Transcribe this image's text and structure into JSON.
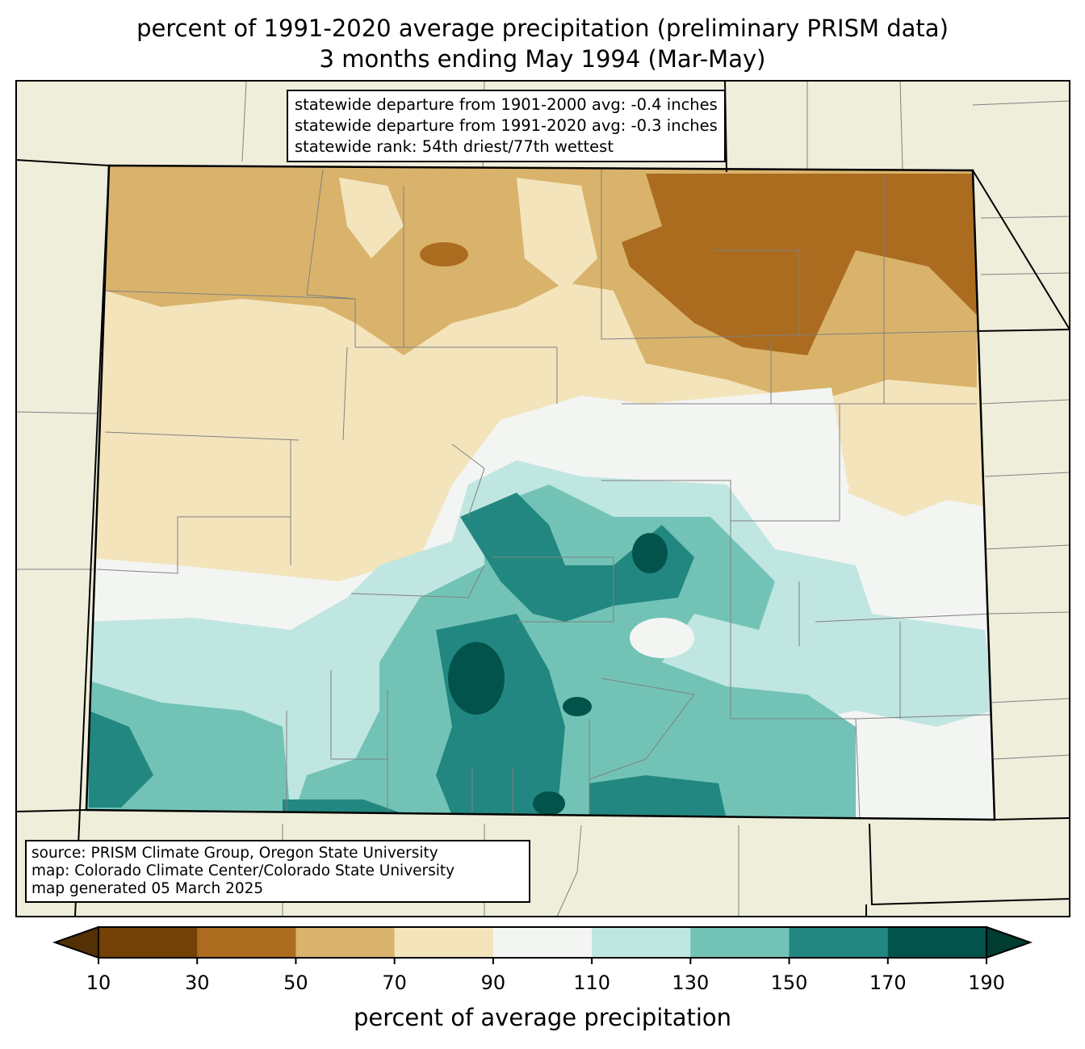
{
  "title": {
    "line1": "percent of 1991-2020 average precipitation (preliminary PRISM data)",
    "line2": "3 months ending May 1994 (Mar-May)"
  },
  "stats_box": {
    "line1": "statewide departure from 1901-2000 avg: -0.4 inches",
    "line2": "statewide departure from 1991-2020 avg: -0.3 inches",
    "line3": "statewide rank: 54th driest/77th wettest"
  },
  "source_box": {
    "line1": "source: PRISM Climate Group, Oregon State University",
    "line2": "map: Colorado Climate Center/Colorado State University",
    "line3": "map generated 05 March 2025"
  },
  "colorbar": {
    "label": "percent of average precipitation",
    "ticks": [
      "10",
      "30",
      "50",
      "70",
      "90",
      "110",
      "130",
      "150",
      "170",
      "190"
    ],
    "under_color": "#543005",
    "over_color": "#003c30",
    "colors": [
      "#734005",
      "#ab6c20",
      "#d9b36b",
      "#f3e4bc",
      "#f3f5f3",
      "#c0e6e1",
      "#72c3b6",
      "#228780",
      "#02534b"
    ]
  },
  "colors": {
    "background_land": "#efeedb",
    "county_lines": "#808080"
  }
}
